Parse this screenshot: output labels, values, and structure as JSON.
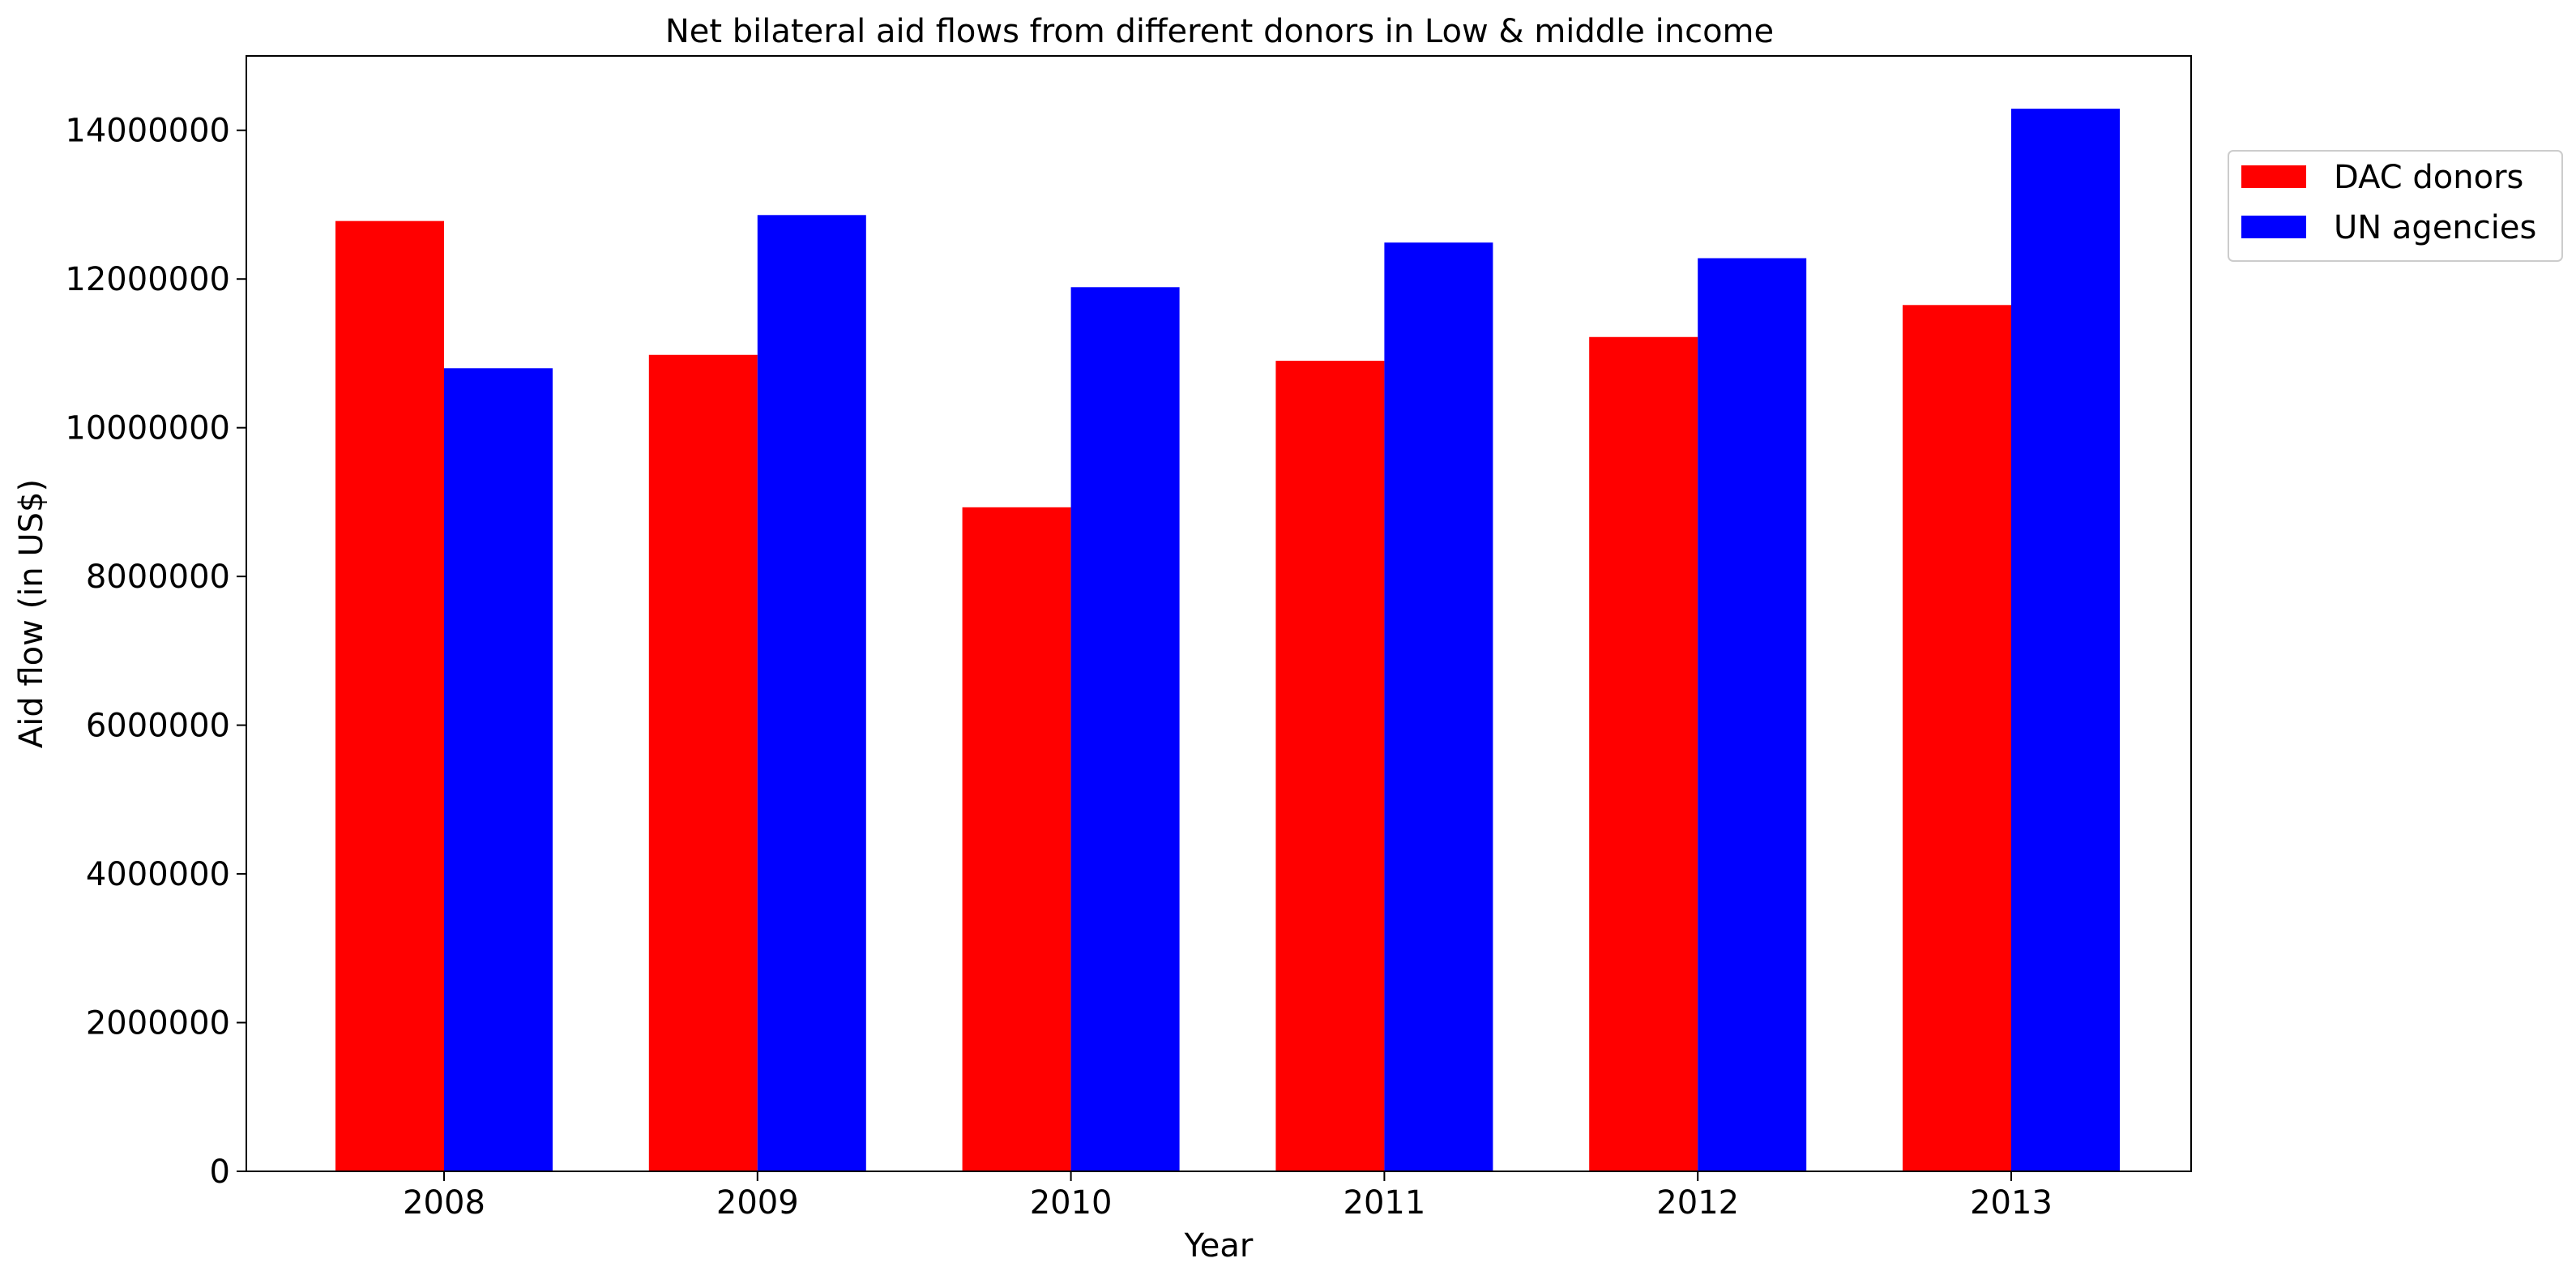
{
  "chart_data": {
    "type": "bar",
    "title": "Net bilateral aid flows from different donors in Low & middle income",
    "xlabel": "Year",
    "ylabel": "Aid flow (in US$)",
    "categories": [
      "2008",
      "2009",
      "2010",
      "2011",
      "2012",
      "2013"
    ],
    "series": [
      {
        "name": "DAC donors",
        "color": "#ff0000",
        "values": [
          12780000,
          10980000,
          8930000,
          10900000,
          11220000,
          11650000
        ]
      },
      {
        "name": "UN agencies",
        "color": "#0000ff",
        "values": [
          10800000,
          12860000,
          11890000,
          12490000,
          12280000,
          14290000
        ]
      }
    ],
    "ylim": [
      0,
      15000000
    ],
    "yticks": [
      0,
      2000000,
      4000000,
      6000000,
      8000000,
      10000000,
      12000000,
      14000000
    ],
    "ytick_labels": [
      "0",
      "2000000",
      "4000000",
      "6000000",
      "8000000",
      "10000000",
      "12000000",
      "14000000"
    ],
    "grid": false,
    "legend_position": "outside-top-right"
  }
}
